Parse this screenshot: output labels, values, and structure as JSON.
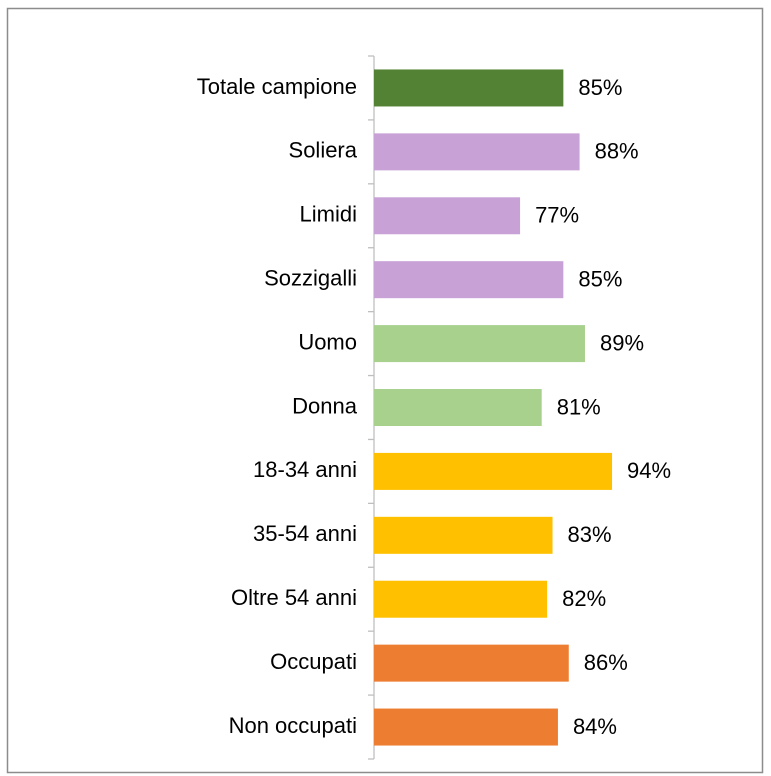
{
  "chart_data": {
    "type": "bar",
    "orientation": "horizontal",
    "categories": [
      "Totale campione",
      "Soliera",
      "Limidi",
      "Sozzigalli",
      "Uomo",
      "Donna",
      "18-34 anni",
      "35-54 anni",
      "Oltre 54 anni",
      "Occupati",
      "Non occupati"
    ],
    "values": [
      85,
      88,
      77,
      85,
      89,
      81,
      94,
      83,
      82,
      86,
      84
    ],
    "value_labels": [
      "85%",
      "88%",
      "77%",
      "85%",
      "89%",
      "81%",
      "94%",
      "83%",
      "82%",
      "86%",
      "84%"
    ],
    "colors": [
      "#548235",
      "#c8a2d6",
      "#c8a2d6",
      "#c8a2d6",
      "#a9d18e",
      "#a9d18e",
      "#ffc000",
      "#ffc000",
      "#ffc000",
      "#ed7d31",
      "#ed7d31"
    ],
    "xlim": [
      50,
      100
    ]
  }
}
